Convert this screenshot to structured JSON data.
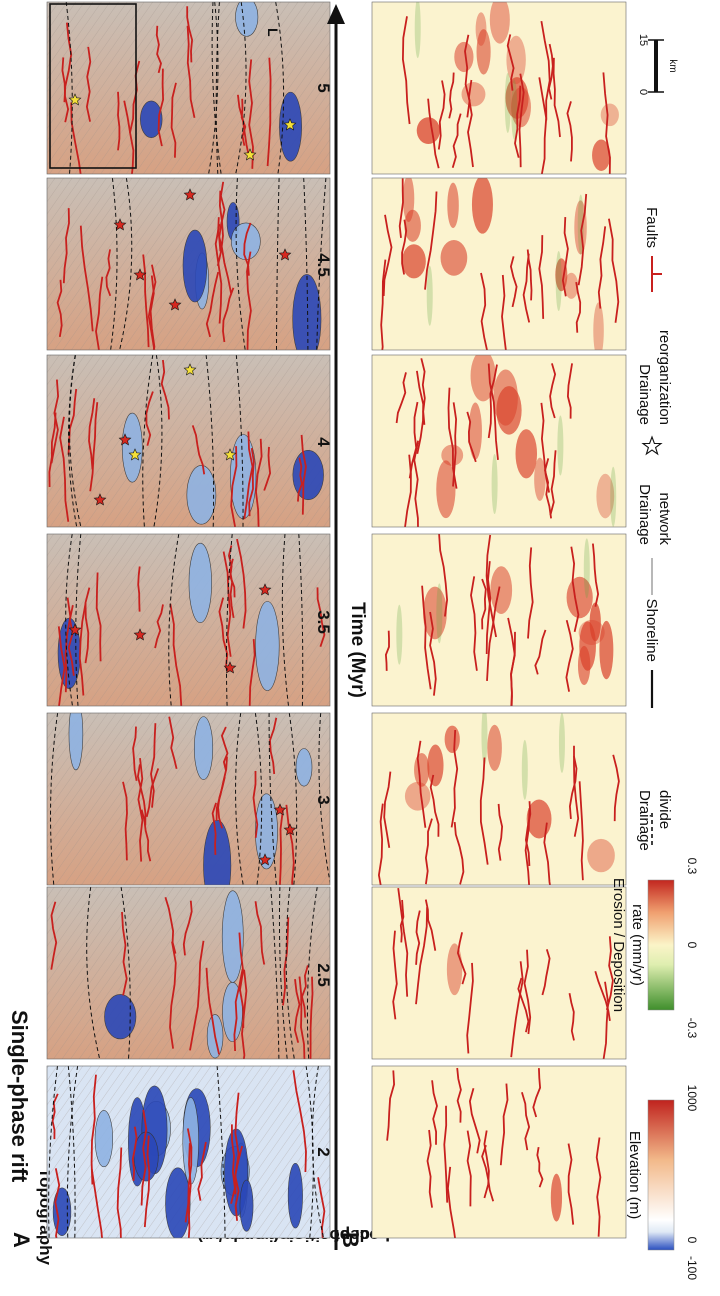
{
  "figure": {
    "title": "Single-phase rift",
    "panel_a": {
      "letter": "A",
      "label": "Topography"
    },
    "panel_b": {
      "letter": "B",
      "label_line1": "Loci of erosion and",
      "label_line2": "deposition (in mm/yr)"
    },
    "time_axis": {
      "label": "Time (Myr)",
      "ticks": [
        "2",
        "2.5",
        "3",
        "3.5",
        "4",
        "4.5",
        "5"
      ]
    },
    "scale_bar": {
      "values": [
        "0",
        "15"
      ],
      "unit": "km"
    },
    "marker_L": "L",
    "elevation_colorbar": {
      "title": "Elevation (m)",
      "min": "-100",
      "mid": "0",
      "max": "1000",
      "colors": [
        "#2a4fbf",
        "#dfe9f5",
        "#ffffff",
        "#f2b98a",
        "#c0231e"
      ]
    },
    "rate_colorbar": {
      "title_line1": "Erosion / Deposition",
      "title_line2": "rate (mm/yr)",
      "min": "-0.3",
      "mid": "0",
      "max": "0.3",
      "colors": [
        "#3f8f2c",
        "#dfeeb0",
        "#fbf4c8",
        "#f0a070",
        "#c2261f"
      ]
    },
    "legend": {
      "divide": {
        "line1": "Drainage",
        "line2": "divide"
      },
      "shoreline": "Shoreline",
      "network": {
        "line1": "Drainage",
        "line2": "network"
      },
      "reorg": {
        "line1": "Drainage",
        "line2": "reorganization"
      },
      "faults": "Faults"
    },
    "colors": {
      "fault": "#c8201e",
      "water_deep": "#2b48b8",
      "water_light": "#8fb3e3",
      "deposition": "#d9402a",
      "erosion": "#5aa33c",
      "star_red": "#d6281f",
      "star_yellow": "#f5e03a"
    }
  }
}
